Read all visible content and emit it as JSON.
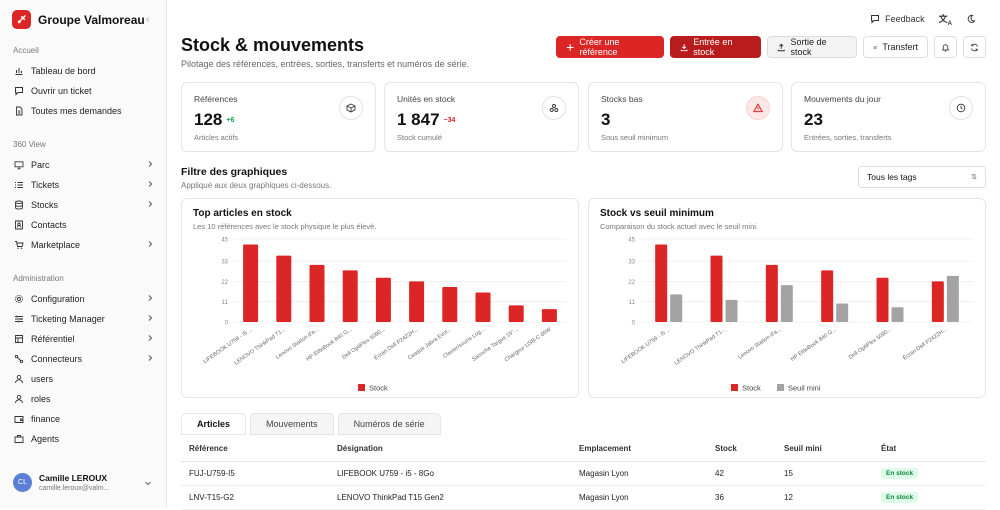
{
  "app": {
    "name": "Groupe Valmoreau"
  },
  "sidebar": {
    "sections": [
      {
        "title": "Accueil",
        "items": [
          {
            "label": "Tableau de bord",
            "icon": "chart-icon",
            "chev": false
          },
          {
            "label": "Ouvrir un ticket",
            "icon": "message-icon",
            "chev": false
          },
          {
            "label": "Toutes mes demandes",
            "icon": "document-icon",
            "chev": false
          }
        ]
      },
      {
        "title": "360 View",
        "items": [
          {
            "label": "Parc",
            "icon": "monitor-icon",
            "chev": true
          },
          {
            "label": "Tickets",
            "icon": "list-icon",
            "chev": true
          },
          {
            "label": "Stocks",
            "icon": "database-icon",
            "chev": true
          },
          {
            "label": "Contacts",
            "icon": "contact-icon",
            "chev": false
          },
          {
            "label": "Marketplace",
            "icon": "cart-icon",
            "chev": true
          }
        ]
      },
      {
        "title": "Administration",
        "items": [
          {
            "label": "Configuration",
            "icon": "gear-icon",
            "chev": true
          },
          {
            "label": "Ticketing Manager",
            "icon": "sliders-icon",
            "chev": true
          },
          {
            "label": "Référentiel",
            "icon": "book-icon",
            "chev": true
          },
          {
            "label": "Connecteurs",
            "icon": "connector-icon",
            "chev": true
          },
          {
            "label": "users",
            "icon": "user-icon",
            "chev": false
          },
          {
            "label": "roles",
            "icon": "user-icon",
            "chev": false
          },
          {
            "label": "finance",
            "icon": "wallet-icon",
            "chev": false
          },
          {
            "label": "Agents",
            "icon": "briefcase-icon",
            "chev": false
          }
        ]
      }
    ],
    "user": {
      "initials": "CL",
      "name": "Camille LEROUX",
      "email": "camille.leroux@valm..."
    }
  },
  "topbar": {
    "feedback": "Feedback"
  },
  "page": {
    "title": "Stock & mouvements",
    "subtitle": "Pilotage des références, entrées, sorties, transferts et numéros de série."
  },
  "actions": {
    "create": "Créer une référence",
    "entry": "Entrée en stock",
    "exit": "Sortie de stock",
    "transfer": "Transfert"
  },
  "kpis": [
    {
      "label": "Références",
      "value": "128",
      "delta": "+6",
      "delta_color": "#16a34a",
      "sub": "Articles actifs",
      "icon": "box-icon"
    },
    {
      "label": "Unités en stock",
      "value": "1 847",
      "delta": "−34",
      "delta_color": "#dc2626",
      "sub": "Stock cumulé",
      "icon": "boxes-icon"
    },
    {
      "label": "Stocks bas",
      "value": "3",
      "delta": "",
      "delta_color": "#dc2626",
      "sub": "Sous seuil minimum",
      "icon": "warning-icon"
    },
    {
      "label": "Mouvements du jour",
      "value": "23",
      "delta": "",
      "delta_color": "#16a34a",
      "sub": "Entrées, sorties, transferts",
      "icon": "history-icon"
    }
  ],
  "filter": {
    "title": "Filtre des graphiques",
    "subtitle": "Appliqué aux deux graphiques ci-dessous.",
    "select_value": "Tous les tags"
  },
  "chart_data": [
    {
      "type": "bar",
      "title": "Top articles en stock",
      "subtitle": "Les 10 références avec le stock physique le plus élevé.",
      "categories": [
        "LIFEBOOK U759 - i5 ...",
        "LENOVO ThinkPad T1...",
        "Lenovo Station d'a...",
        "HP EliteBook 840 G...",
        "Dell OptiPlex 5090...",
        "Écran Dell P2422H...",
        "Casque Jabra Evol...",
        "Clavier/souris Log...",
        "Sacoche Targus 15\"...",
        "Chargeur USB-C 65W"
      ],
      "series": [
        {
          "name": "Stock",
          "color": "#dc2626",
          "values": [
            42,
            36,
            31,
            28,
            24,
            22,
            19,
            16,
            9,
            7
          ]
        }
      ],
      "yticks": [
        0,
        11,
        22,
        33,
        45
      ],
      "ylim": [
        0,
        45
      ],
      "legend": "bottom"
    },
    {
      "type": "bar",
      "title": "Stock vs seuil minimum",
      "subtitle": "Comparaison du stock actuel avec le seuil mini.",
      "categories": [
        "LIFEBOOK U759 - i5 ...",
        "LENOVO ThinkPad T1...",
        "Lenovo Station d'a...",
        "HP EliteBook 840 G...",
        "Dell OptiPlex 5090...",
        "Écran Dell P2422H..."
      ],
      "series": [
        {
          "name": "Stock",
          "color": "#dc2626",
          "values": [
            42,
            36,
            31,
            28,
            24,
            22
          ]
        },
        {
          "name": "Seuil mini",
          "color": "#a3a3a3",
          "values": [
            15,
            12,
            20,
            10,
            8,
            25
          ]
        }
      ],
      "yticks": [
        0,
        11,
        22,
        33,
        45
      ],
      "ylim": [
        0,
        45
      ],
      "legend": "bottom"
    }
  ],
  "tabs": [
    "Articles",
    "Mouvements",
    "Numéros de série"
  ],
  "table": {
    "headers": [
      "Référence",
      "Désignation",
      "Emplacement",
      "Stock",
      "Seuil mini",
      "État"
    ],
    "rows": [
      [
        "FUJ-U759-I5",
        "LIFEBOOK U759 - i5 - 8Go",
        "Magasin Lyon",
        "42",
        "15",
        "En stock"
      ],
      [
        "LNV-T15-G2",
        "LENOVO ThinkPad T15 Gen2",
        "Magasin Lyon",
        "36",
        "12",
        "En stock"
      ]
    ]
  }
}
